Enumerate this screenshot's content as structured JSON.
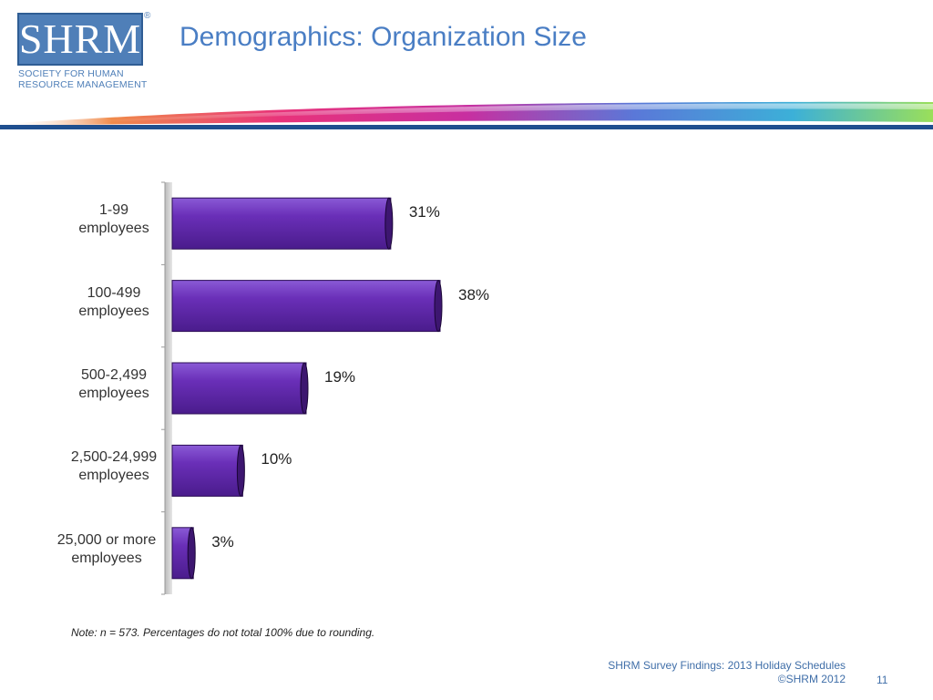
{
  "logo": {
    "letters": "SHRM",
    "registered": "®",
    "line1": "SOCIETY FOR HUMAN",
    "line2": "RESOURCE MANAGEMENT"
  },
  "slide": {
    "title": "Demographics: Organization Size",
    "note": "Note: n = 573. Percentages do not total 100% due to rounding.",
    "footer_line1": "SHRM Survey Findings: 2013 Holiday Schedules",
    "footer_line2": "©SHRM 2012",
    "page_number": "11"
  },
  "colors": {
    "bar": "#6a2fb8",
    "bar_dark": "#3d1670",
    "title": "#4a7ec4",
    "brand": "#4f7fb8"
  },
  "chart_data": {
    "type": "bar",
    "orientation": "horizontal",
    "title": "",
    "categories": [
      [
        "1-99",
        "employees"
      ],
      [
        "100-499",
        "employees"
      ],
      [
        "500-2,499",
        "employees"
      ],
      [
        "2,500-24,999",
        "employees"
      ],
      [
        "25,000 or more",
        "employees"
      ]
    ],
    "values": [
      31,
      38,
      19,
      10,
      3
    ],
    "value_labels": [
      "31%",
      "38%",
      "19%",
      "10%",
      "3%"
    ],
    "xlim": [
      0,
      100
    ],
    "grid": false,
    "legend": "none"
  }
}
